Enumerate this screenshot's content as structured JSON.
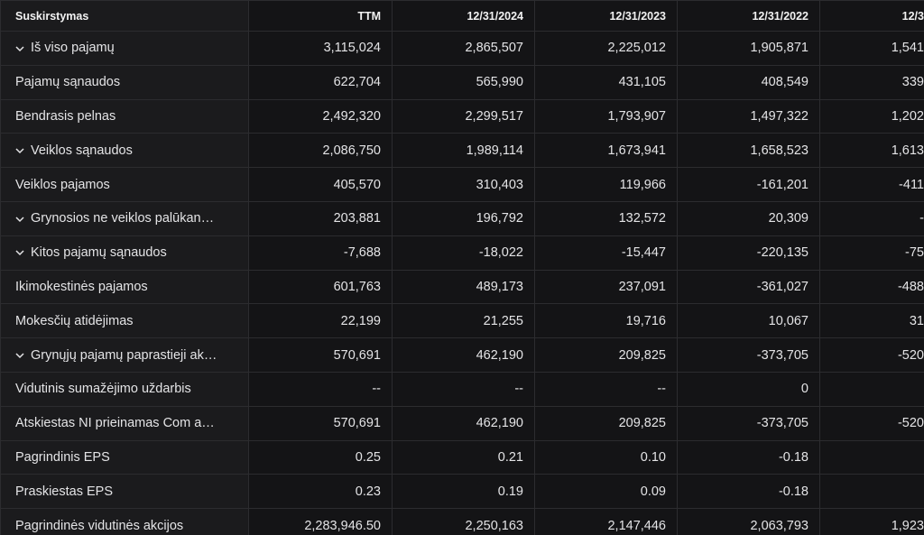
{
  "table": {
    "headers": [
      "Suskirstymas",
      "TTM",
      "12/31/2024",
      "12/31/2023",
      "12/31/2022",
      "12/3"
    ],
    "rows": [
      [
        "Iš viso pajamų",
        "3,115,024",
        "2,865,507",
        "2,225,012",
        "1,905,871",
        "1,541"
      ],
      [
        "Pajamų sąnaudos",
        "622,704",
        "565,990",
        "431,105",
        "408,549",
        "339"
      ],
      [
        "Bendrasis pelnas",
        "2,492,320",
        "2,299,517",
        "1,793,907",
        "1,497,322",
        "1,202"
      ],
      [
        "Veiklos sąnaudos",
        "2,086,750",
        "1,989,114",
        "1,673,941",
        "1,658,523",
        "1,613"
      ],
      [
        "Veiklos pajamos",
        "405,570",
        "310,403",
        "119,966",
        "-161,201",
        "-411"
      ],
      [
        "Grynosios ne veiklos palūkan…",
        "203,881",
        "196,792",
        "132,572",
        "20,309",
        "-"
      ],
      [
        "Kitos pajamų sąnaudos",
        "-7,688",
        "-18,022",
        "-15,447",
        "-220,135",
        "-75"
      ],
      [
        "Ikimokestinės pajamos",
        "601,763",
        "489,173",
        "237,091",
        "-361,027",
        "-488"
      ],
      [
        "Mokesčių atidėjimas",
        "22,199",
        "21,255",
        "19,716",
        "10,067",
        "31"
      ],
      [
        "Grynųjų pajamų paprastieji ak…",
        "570,691",
        "462,190",
        "209,825",
        "-373,705",
        "-520"
      ],
      [
        "Vidutinis sumažėjimo uždarbis",
        "--",
        "--",
        "--",
        "0",
        null
      ],
      [
        "Atskiestas NI prieinamas Com a…",
        "570,691",
        "462,190",
        "209,825",
        "-373,705",
        "-520"
      ],
      [
        "Pagrindinis EPS",
        "0.25",
        "0.21",
        "0.10",
        "-0.18",
        null
      ],
      [
        "Praskiestas EPS",
        "0.23",
        "0.19",
        "0.09",
        "-0.18",
        null
      ],
      [
        "Pagrindinės vidutinės akcijos",
        "2,283,946.50",
        "2,250,163",
        "2,147,446",
        "2,063,793",
        "1,923"
      ]
    ]
  }
}
